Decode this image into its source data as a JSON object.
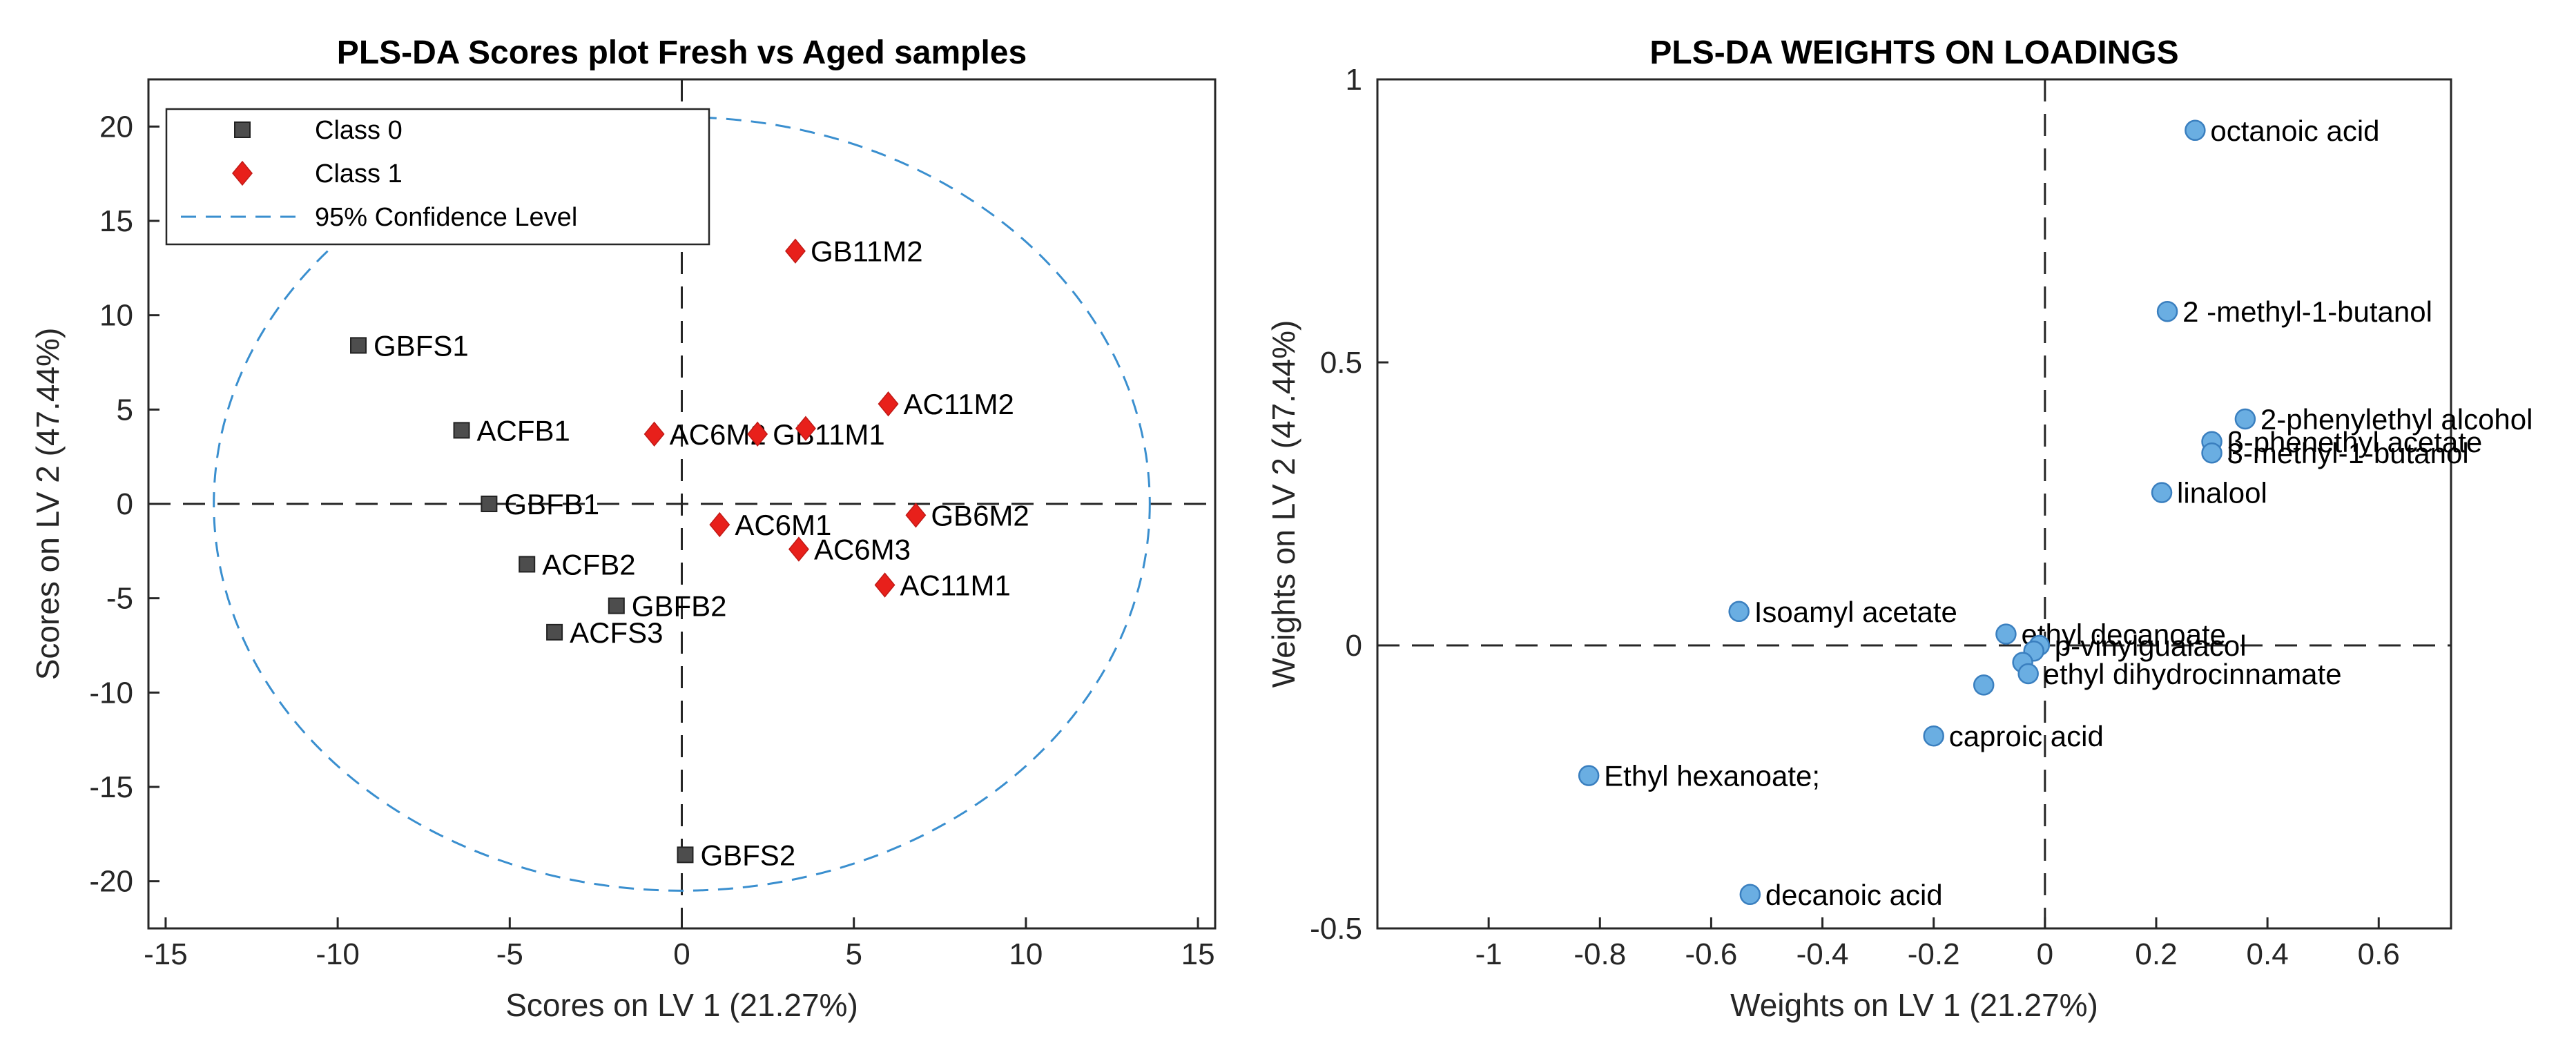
{
  "chart_data": [
    {
      "type": "scatter",
      "title": "PLS-DA Scores plot Fresh vs Aged samples",
      "xlabel": "Scores on LV 1 (21.27%)",
      "ylabel": "Scores on LV 2 (47.44%)",
      "xlim": [
        -15.5,
        15.5
      ],
      "ylim": [
        -22.5,
        22.5
      ],
      "xticks": [
        -15,
        -10,
        -5,
        0,
        5,
        10,
        15
      ],
      "yticks": [
        -20,
        -15,
        -10,
        -5,
        0,
        5,
        10,
        15,
        20
      ],
      "grid": false,
      "legend_position": "top-left",
      "confidence_ellipse": {
        "label": "95% Confidence Level",
        "cx": 0,
        "cy": 0,
        "rx": 13.6,
        "ry": 20.5,
        "color": "#3a8fcf"
      },
      "series": [
        {
          "name": "Class 0",
          "marker": "square",
          "color": "#4d4d4d",
          "points": [
            {
              "label": "GBFS1",
              "x": -9.4,
              "y": 8.4
            },
            {
              "label": "ACFB1",
              "x": -6.4,
              "y": 3.9
            },
            {
              "label": "GBFB1",
              "x": -5.6,
              "y": 0.0
            },
            {
              "label": "ACFB2",
              "x": -4.5,
              "y": -3.2
            },
            {
              "label": "GBFB2",
              "x": -1.9,
              "y": -5.4
            },
            {
              "label": "ACFS3",
              "x": -3.7,
              "y": -6.8
            },
            {
              "label": "GBFS2",
              "x": 0.1,
              "y": -18.6
            }
          ]
        },
        {
          "name": "Class 1",
          "marker": "diamond",
          "color": "#e8201b",
          "points": [
            {
              "label": "GB11M2",
              "x": 3.3,
              "y": 13.4
            },
            {
              "label": "AC11M2",
              "x": 6.0,
              "y": 5.3
            },
            {
              "label": "AC6M2",
              "x": -0.8,
              "y": 3.7
            },
            {
              "label": "GB11M1",
              "x": 2.2,
              "y": 3.7
            },
            {
              "label": "",
              "x": 3.6,
              "y": 4.0
            },
            {
              "label": "GB6M2",
              "x": 6.8,
              "y": -0.6
            },
            {
              "label": "AC6M1",
              "x": 1.1,
              "y": -1.1
            },
            {
              "label": "AC6M3",
              "x": 3.4,
              "y": -2.4
            },
            {
              "label": "AC11M1",
              "x": 5.9,
              "y": -4.3
            }
          ]
        }
      ]
    },
    {
      "type": "scatter",
      "title": "PLS-DA WEIGHTS ON LOADINGS",
      "xlabel": "Weights on LV 1 (21.27%)",
      "ylabel": "Weights on LV 2 (47.44%)",
      "xlim": [
        -1.2,
        0.73
      ],
      "ylim": [
        -0.5,
        1.0
      ],
      "xticks": [
        -1,
        -0.8,
        -0.6,
        -0.4,
        -0.2,
        0,
        0.2,
        0.4,
        0.6
      ],
      "yticks": [
        -0.5,
        0,
        0.5,
        1
      ],
      "grid": false,
      "series": [
        {
          "name": "weights",
          "marker": "circle",
          "color": "#6aaee2",
          "points": [
            {
              "label": "octanoic acid",
              "x": 0.27,
              "y": 0.91
            },
            {
              "label": "2 -methyl-1-butanol",
              "x": 0.22,
              "y": 0.59
            },
            {
              "label": "2-phenylethyl alcohol",
              "x": 0.36,
              "y": 0.4
            },
            {
              "label": "β-phenethyl acetate",
              "x": 0.3,
              "y": 0.36
            },
            {
              "label": "3-methyl-1-butanol",
              "x": 0.3,
              "y": 0.34
            },
            {
              "label": "linalool",
              "x": 0.21,
              "y": 0.27
            },
            {
              "label": "Isoamyl acetate",
              "x": -0.55,
              "y": 0.06
            },
            {
              "label": "ethyl decanoate",
              "x": -0.07,
              "y": 0.02
            },
            {
              "label": "p-vinylguaiacol",
              "x": -0.01,
              "y": 0.0
            },
            {
              "label": "",
              "x": -0.02,
              "y": -0.01
            },
            {
              "label": "",
              "x": -0.04,
              "y": -0.03
            },
            {
              "label": "ethyl dihydrocinnamate",
              "x": -0.03,
              "y": -0.05
            },
            {
              "label": "",
              "x": -0.11,
              "y": -0.07
            },
            {
              "label": "caproic acid",
              "x": -0.2,
              "y": -0.16
            },
            {
              "label": "Ethyl hexanoate;",
              "x": -0.82,
              "y": -0.23
            },
            {
              "label": "decanoic acid",
              "x": -0.53,
              "y": -0.44
            }
          ]
        }
      ]
    }
  ]
}
